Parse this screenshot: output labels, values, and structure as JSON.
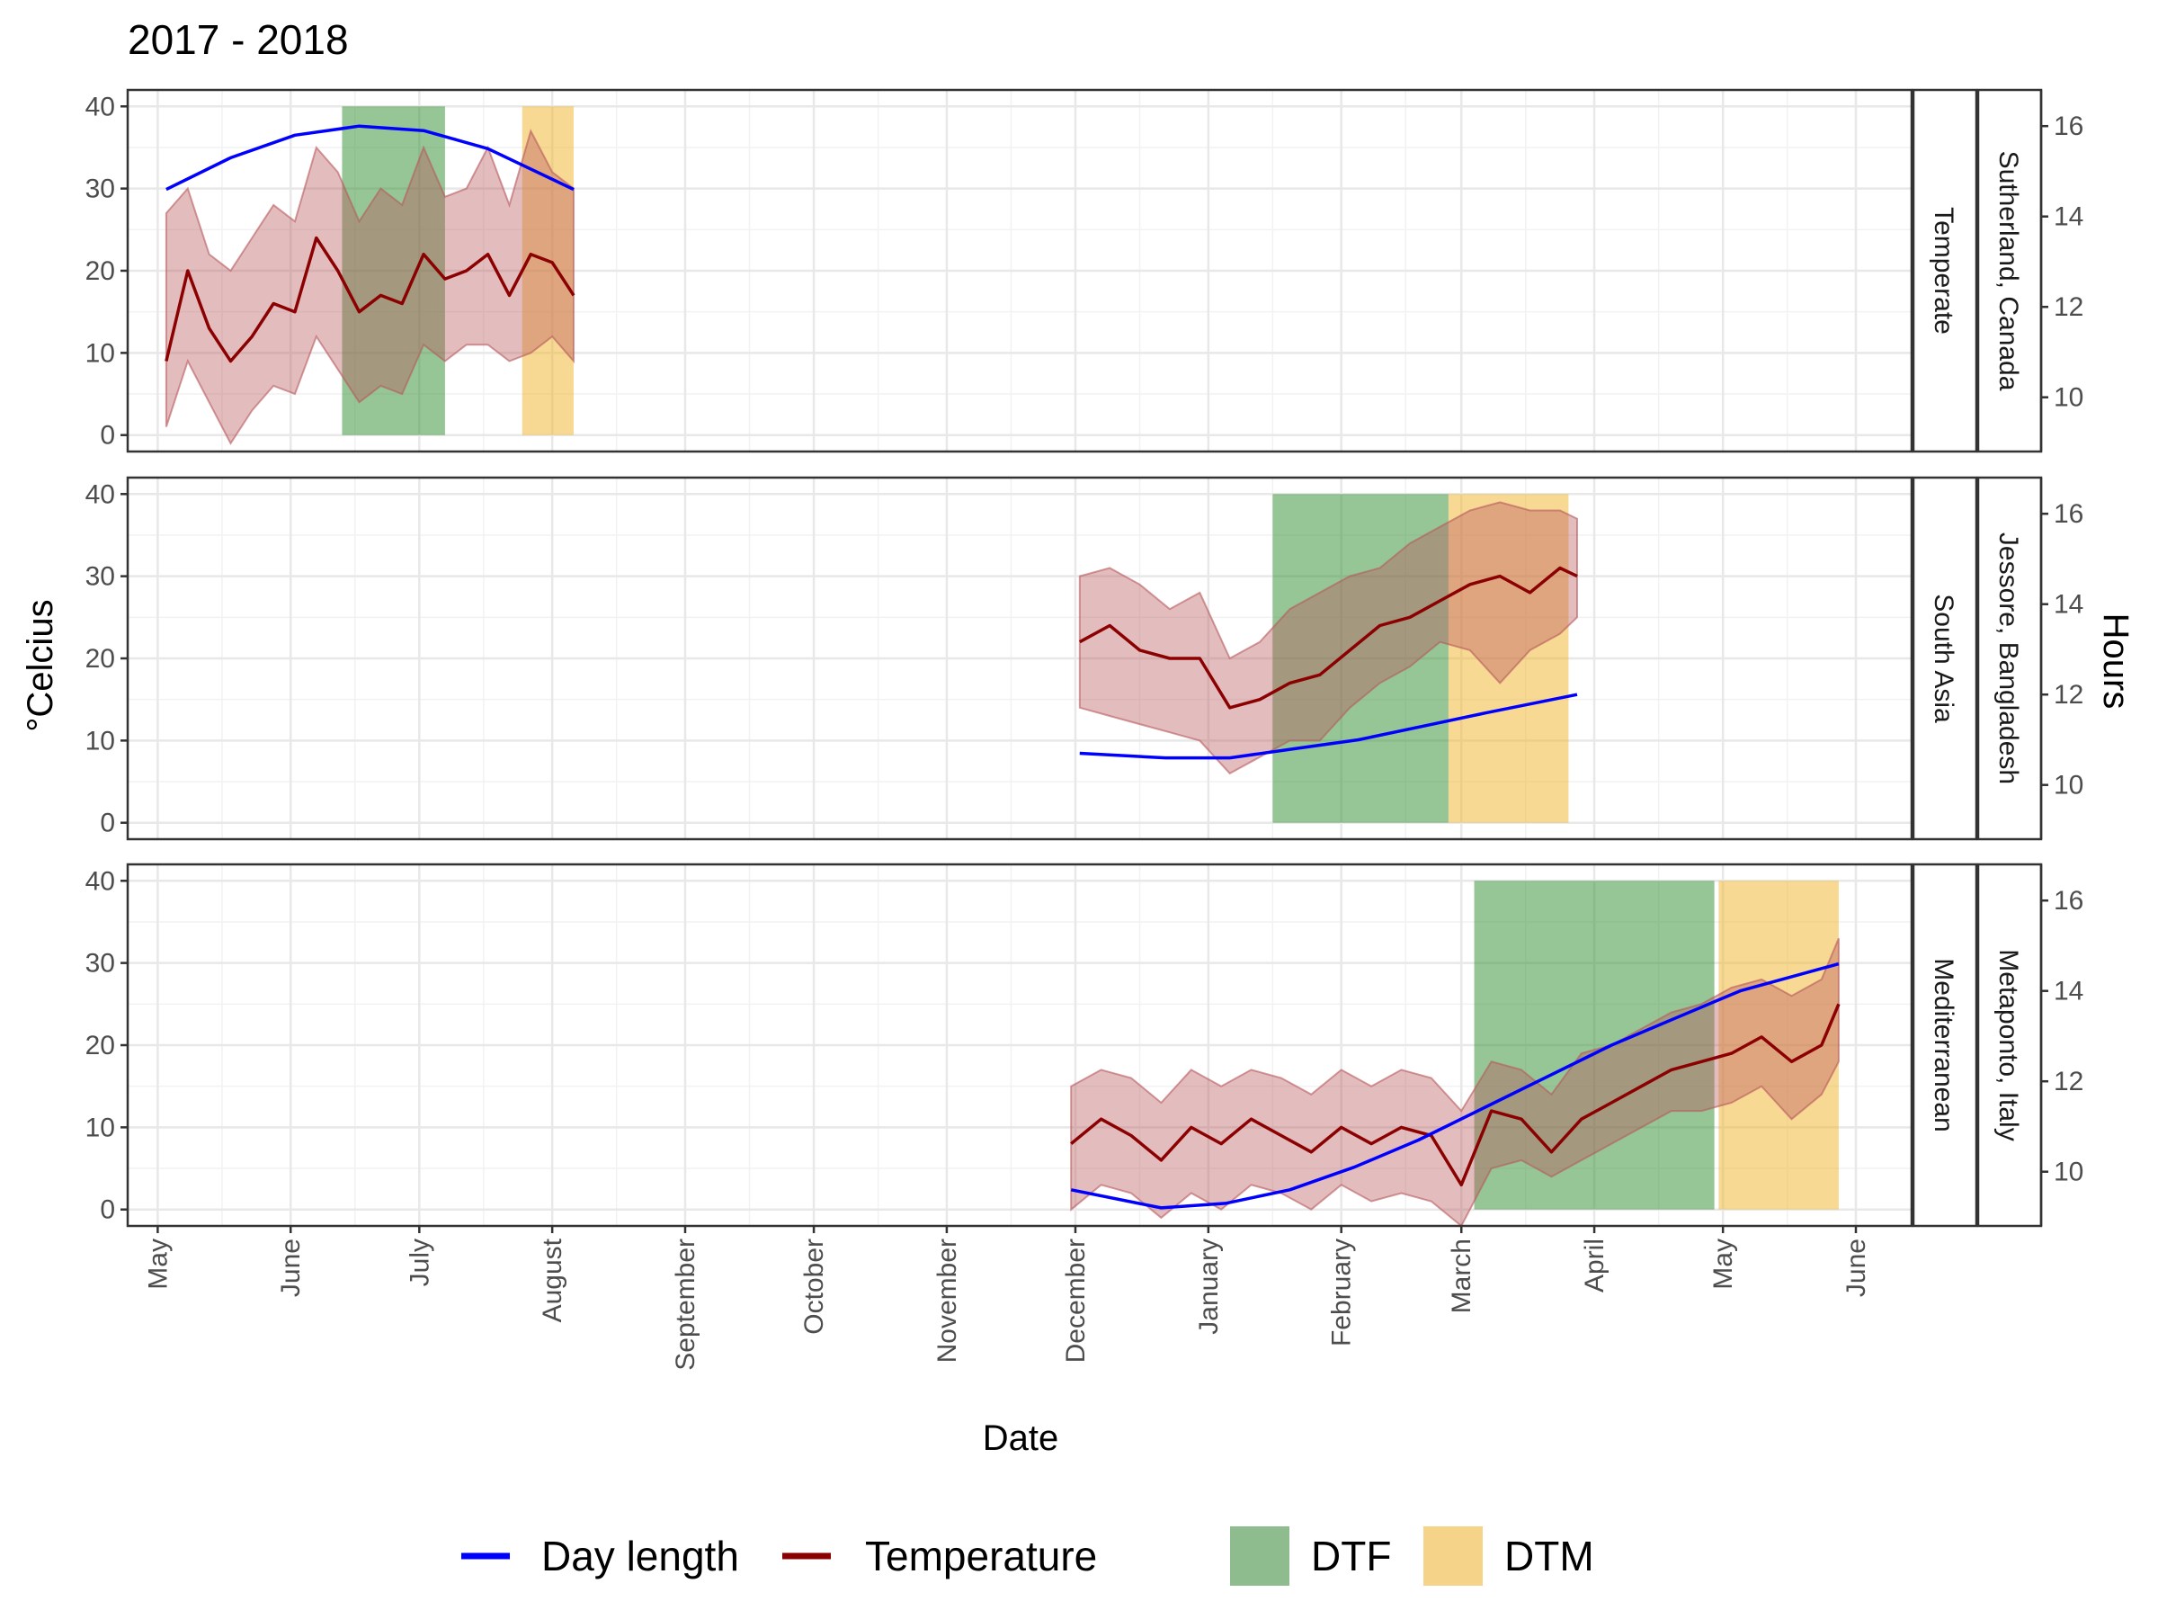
{
  "chart_data": {
    "type": "area",
    "title": "2017 - 2018",
    "xlabel": "Date",
    "ylabel": "°Celcius",
    "ylabel_right": "Hours",
    "x_tick_labels": [
      "May",
      "June",
      "July",
      "August",
      "September",
      "October",
      "November",
      "December",
      "January",
      "February",
      "March",
      "April",
      "May",
      "June"
    ],
    "xlim": [
      "2017-04-24",
      "2018-06-14"
    ],
    "ylim": [
      -2,
      42
    ],
    "y_ticks": [
      0,
      10,
      20,
      30,
      40
    ],
    "y2lim": [
      8.8,
      16.8
    ],
    "y2_ticks": [
      10,
      12,
      14,
      16
    ],
    "grid": true,
    "legend": {
      "position": "bottom",
      "entries": [
        {
          "label": "Day length",
          "kind": "line",
          "color": "#0000ff"
        },
        {
          "label": "Temperature",
          "kind": "line",
          "color": "#8b0000"
        },
        {
          "label": "DTF",
          "kind": "fill",
          "color": "#8fbc8f"
        },
        {
          "label": "DTM",
          "kind": "fill",
          "color": "#f5d48a"
        }
      ]
    },
    "colors": {
      "day_length": "#0000ff",
      "temperature": "#8b0000",
      "temperature_band": "#b8585c",
      "dtf": "#2e8b2e",
      "dtm": "#f0b429"
    },
    "panels": [
      {
        "region": "Temperate",
        "location": "Sutherland, Canada",
        "dtf": [
          "2017-06-13",
          "2017-07-07"
        ],
        "dtm": [
          "2017-07-25",
          "2017-08-06"
        ],
        "temperature": {
          "dates": [
            "2017-05-03",
            "2017-05-08",
            "2017-05-13",
            "2017-05-18",
            "2017-05-23",
            "2017-05-28",
            "2017-06-02",
            "2017-06-07",
            "2017-06-12",
            "2017-06-17",
            "2017-06-22",
            "2017-06-27",
            "2017-07-02",
            "2017-07-07",
            "2017-07-12",
            "2017-07-17",
            "2017-07-22",
            "2017-07-27",
            "2017-08-01",
            "2017-08-06"
          ],
          "mean": [
            9,
            20,
            13,
            9,
            12,
            16,
            15,
            24,
            20,
            15,
            17,
            16,
            22,
            19,
            20,
            22,
            17,
            22,
            21,
            17
          ],
          "min": [
            1,
            9,
            4,
            -1,
            3,
            6,
            5,
            12,
            8,
            4,
            6,
            5,
            11,
            9,
            11,
            11,
            9,
            10,
            12,
            9
          ],
          "max": [
            27,
            30,
            22,
            20,
            24,
            28,
            26,
            35,
            32,
            26,
            30,
            28,
            35,
            29,
            30,
            35,
            28,
            37,
            32,
            30
          ]
        },
        "day_length": {
          "dates": [
            "2017-05-03",
            "2017-05-18",
            "2017-06-02",
            "2017-06-17",
            "2017-07-02",
            "2017-07-17",
            "2017-08-06"
          ],
          "hours": [
            14.6,
            15.3,
            15.8,
            16.0,
            15.9,
            15.5,
            14.6
          ]
        }
      },
      {
        "region": "South Asia",
        "location": "Jessore, Bangladesh",
        "dtf": [
          "2018-01-16",
          "2018-02-26"
        ],
        "dtm": [
          "2018-02-26",
          "2018-03-26"
        ],
        "temperature": {
          "dates": [
            "2017-12-02",
            "2017-12-09",
            "2017-12-16",
            "2017-12-23",
            "2017-12-30",
            "2018-01-06",
            "2018-01-13",
            "2018-01-20",
            "2018-01-27",
            "2018-02-03",
            "2018-02-10",
            "2018-02-17",
            "2018-02-24",
            "2018-03-03",
            "2018-03-10",
            "2018-03-17",
            "2018-03-24",
            "2018-03-28"
          ],
          "mean": [
            22,
            24,
            21,
            20,
            20,
            14,
            15,
            17,
            18,
            21,
            24,
            25,
            27,
            29,
            30,
            28,
            31,
            30
          ],
          "min": [
            14,
            13,
            12,
            11,
            10,
            6,
            8,
            10,
            10,
            14,
            17,
            19,
            22,
            21,
            17,
            21,
            23,
            25
          ],
          "max": [
            30,
            31,
            29,
            26,
            28,
            20,
            22,
            26,
            28,
            30,
            31,
            34,
            36,
            38,
            39,
            38,
            38,
            37
          ]
        },
        "day_length": {
          "dates": [
            "2017-12-02",
            "2017-12-22",
            "2018-01-06",
            "2018-01-21",
            "2018-02-05",
            "2018-02-20",
            "2018-03-07",
            "2018-03-28"
          ],
          "hours": [
            10.7,
            10.6,
            10.6,
            10.8,
            11.0,
            11.3,
            11.6,
            12.0
          ]
        }
      },
      {
        "region": "Mediterranean",
        "location": "Metaponto, Italy",
        "dtf": [
          "2018-03-04",
          "2018-04-29"
        ],
        "dtm": [
          "2018-04-30",
          "2018-05-28"
        ],
        "temperature": {
          "dates": [
            "2017-11-30",
            "2017-12-07",
            "2017-12-14",
            "2017-12-21",
            "2017-12-28",
            "2018-01-04",
            "2018-01-11",
            "2018-01-18",
            "2018-01-25",
            "2018-02-01",
            "2018-02-08",
            "2018-02-15",
            "2018-02-22",
            "2018-03-01",
            "2018-03-08",
            "2018-03-15",
            "2018-03-22",
            "2018-03-29",
            "2018-04-05",
            "2018-04-12",
            "2018-04-19",
            "2018-04-26",
            "2018-05-03",
            "2018-05-10",
            "2018-05-17",
            "2018-05-24",
            "2018-05-28"
          ],
          "mean": [
            8,
            11,
            9,
            6,
            10,
            8,
            11,
            9,
            7,
            10,
            8,
            10,
            9,
            3,
            12,
            11,
            7,
            11,
            13,
            15,
            17,
            18,
            19,
            21,
            18,
            20,
            25
          ],
          "min": [
            0,
            3,
            2,
            -1,
            2,
            0,
            3,
            2,
            0,
            3,
            1,
            2,
            1,
            -2,
            5,
            6,
            4,
            6,
            8,
            10,
            12,
            12,
            13,
            15,
            11,
            14,
            18
          ],
          "max": [
            15,
            17,
            16,
            13,
            17,
            15,
            17,
            16,
            14,
            17,
            15,
            17,
            16,
            12,
            18,
            17,
            14,
            19,
            20,
            22,
            24,
            25,
            27,
            28,
            26,
            28,
            33
          ]
        },
        "day_length": {
          "dates": [
            "2017-11-30",
            "2017-12-21",
            "2018-01-05",
            "2018-01-20",
            "2018-02-04",
            "2018-02-19",
            "2018-03-06",
            "2018-03-21",
            "2018-04-05",
            "2018-04-20",
            "2018-05-05",
            "2018-05-28"
          ],
          "hours": [
            9.6,
            9.2,
            9.3,
            9.6,
            10.1,
            10.7,
            11.4,
            12.1,
            12.8,
            13.4,
            14.0,
            14.6
          ]
        }
      }
    ]
  }
}
